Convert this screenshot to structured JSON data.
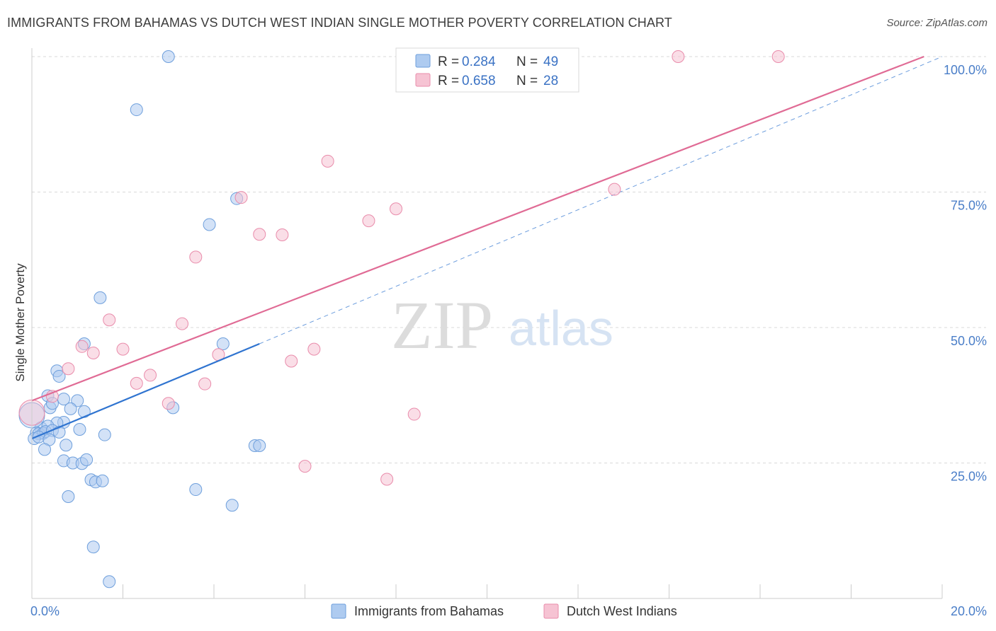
{
  "title": "IMMIGRANTS FROM BAHAMAS VS DUTCH WEST INDIAN SINGLE MOTHER POVERTY CORRELATION CHART",
  "source": "Source: ZipAtlas.com",
  "watermark": {
    "zip": "ZIP",
    "atlas": "atlas"
  },
  "colors": {
    "blue_fill": "#aecbf0",
    "blue_stroke": "#6e9fdc",
    "blue_line": "#2f74d0",
    "pink_fill": "#f6c3d3",
    "pink_stroke": "#e98cab",
    "pink_line": "#e06b95",
    "grid": "#d9d9d9",
    "axis_label": "#4a7ec8"
  },
  "legend": {
    "series1": {
      "r_label": "R = ",
      "r_value": "0.284",
      "n_label": "N = ",
      "n_value": "49"
    },
    "series2": {
      "r_label": "R = ",
      "r_value": "0.658",
      "n_label": "N = ",
      "n_value": "28"
    }
  },
  "chart_data": {
    "type": "scatter",
    "title": "IMMIGRANTS FROM BAHAMAS VS DUTCH WEST INDIAN SINGLE MOTHER POVERTY CORRELATION CHART",
    "xlabel": "",
    "ylabel": "Single Mother Poverty",
    "xlim": [
      0,
      20
    ],
    "ylim": [
      0,
      100
    ],
    "x_tick_labels": [
      "0.0%",
      "20.0%"
    ],
    "y_ticks": [
      25,
      50,
      75,
      100
    ],
    "y_tick_labels": [
      "25.0%",
      "50.0%",
      "75.0%",
      "100.0%"
    ],
    "series": [
      {
        "name": "Immigrants from Bahamas",
        "color": "blue",
        "points": [
          [
            3.0,
            100.0
          ],
          [
            2.3,
            90.2
          ],
          [
            1.5,
            55.5
          ],
          [
            3.9,
            69.0
          ],
          [
            4.5,
            73.8
          ],
          [
            1.15,
            47.0
          ],
          [
            4.2,
            47.0
          ],
          [
            0.55,
            42.0
          ],
          [
            0.6,
            41.0
          ],
          [
            0.35,
            37.4
          ],
          [
            0.4,
            35.2
          ],
          [
            0.45,
            36.0
          ],
          [
            0.7,
            36.8
          ],
          [
            1.0,
            36.5
          ],
          [
            1.15,
            34.5
          ],
          [
            0.85,
            35.0
          ],
          [
            3.1,
            35.2
          ],
          [
            0.7,
            32.5
          ],
          [
            0.55,
            32.4
          ],
          [
            0.2,
            31.5
          ],
          [
            0.35,
            31.8
          ],
          [
            0.1,
            30.6
          ],
          [
            0.15,
            30.4
          ],
          [
            0.25,
            30.5
          ],
          [
            0.3,
            30.8
          ],
          [
            0.45,
            31.0
          ],
          [
            0.6,
            30.7
          ],
          [
            0.05,
            29.5
          ],
          [
            0.15,
            29.8
          ],
          [
            0.38,
            29.3
          ],
          [
            1.05,
            31.2
          ],
          [
            0.75,
            28.3
          ],
          [
            1.6,
            30.2
          ],
          [
            0.28,
            27.5
          ],
          [
            4.9,
            28.2
          ],
          [
            5.0,
            28.2
          ],
          [
            0.7,
            25.4
          ],
          [
            0.9,
            25.0
          ],
          [
            1.1,
            24.9
          ],
          [
            1.2,
            25.6
          ],
          [
            1.3,
            21.9
          ],
          [
            1.4,
            21.5
          ],
          [
            1.55,
            21.7
          ],
          [
            3.6,
            20.1
          ],
          [
            0.8,
            18.8
          ],
          [
            4.4,
            17.2
          ],
          [
            1.35,
            9.5
          ],
          [
            1.7,
            3.1
          ],
          [
            0.0,
            33.8
          ]
        ]
      },
      {
        "name": "Dutch West Indians",
        "color": "pink",
        "points": [
          [
            14.2,
            100.0
          ],
          [
            16.4,
            100.0
          ],
          [
            6.5,
            80.7
          ],
          [
            4.6,
            74.0
          ],
          [
            8.0,
            71.9
          ],
          [
            7.4,
            69.7
          ],
          [
            5.0,
            67.2
          ],
          [
            5.5,
            67.1
          ],
          [
            3.6,
            63.0
          ],
          [
            1.7,
            51.4
          ],
          [
            3.3,
            50.7
          ],
          [
            1.1,
            46.5
          ],
          [
            1.35,
            45.3
          ],
          [
            2.0,
            46.0
          ],
          [
            6.2,
            46.0
          ],
          [
            4.1,
            45.0
          ],
          [
            5.7,
            43.8
          ],
          [
            0.8,
            42.4
          ],
          [
            2.6,
            41.2
          ],
          [
            2.3,
            39.7
          ],
          [
            3.8,
            39.6
          ],
          [
            0.45,
            37.3
          ],
          [
            3.0,
            36.0
          ],
          [
            8.4,
            34.0
          ],
          [
            6.0,
            24.4
          ],
          [
            7.8,
            22.0
          ],
          [
            12.8,
            75.5
          ],
          [
            0.0,
            34.3
          ]
        ]
      }
    ],
    "trendlines": [
      {
        "series": "Immigrants from Bahamas",
        "from": [
          0,
          29.5
        ],
        "to": [
          5.0,
          47.0
        ],
        "dashed_extension_to": [
          20,
          100
        ]
      },
      {
        "series": "Dutch West Indians",
        "from": [
          0,
          36.5
        ],
        "to": [
          19.6,
          100.0
        ]
      }
    ]
  }
}
